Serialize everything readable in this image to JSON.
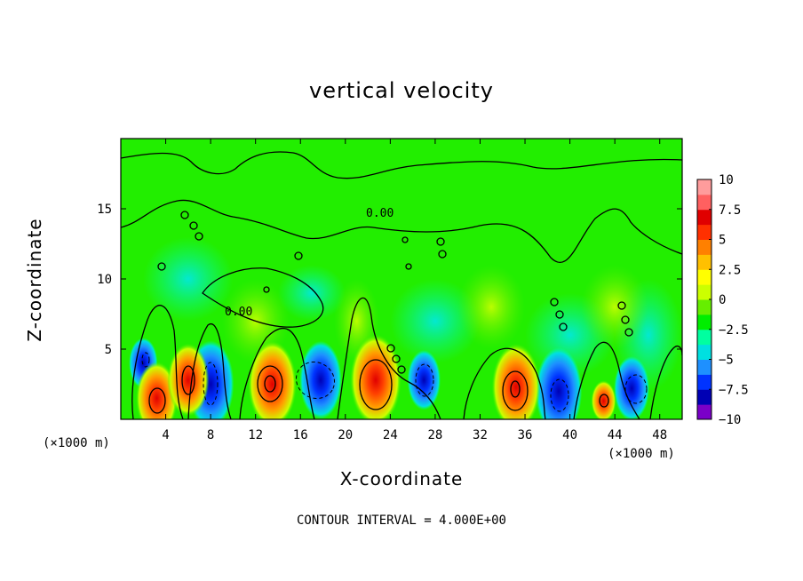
{
  "chart_data": {
    "type": "heatmap",
    "title": "vertical velocity",
    "xlabel": "X-coordinate",
    "ylabel": "Z-coordinate",
    "x_unit_left": "(×1000 m)",
    "x_unit_right": "(×1000 m)",
    "xlim": [
      0,
      50
    ],
    "ylim": [
      0,
      20
    ],
    "x_ticks": [
      4,
      8,
      12,
      16,
      20,
      24,
      28,
      32,
      36,
      40,
      44,
      48
    ],
    "y_ticks": [
      5,
      10,
      15
    ],
    "footnote": "CONTOUR INTERVAL = 4.000E+00",
    "colorbar": {
      "min": -10,
      "max": 10,
      "ticks": [
        10,
        7.5,
        5,
        2.5,
        0,
        -2.5,
        -5,
        -7.5,
        -10
      ],
      "tick_labels": [
        "10",
        "7.5",
        "5",
        "2.5",
        "0",
        "−2.5",
        "−5",
        "−7.5",
        "−10"
      ],
      "colors": [
        "#7a00c8",
        "#0000b4",
        "#0033ff",
        "#1e90ff",
        "#00e0e0",
        "#00ffa0",
        "#00ee00",
        "#66ee00",
        "#ccff00",
        "#ffff00",
        "#ffc000",
        "#ff8000",
        "#ff3000",
        "#e00000",
        "#ff6060",
        "#ff9c9c"
      ]
    },
    "contour_labels": [
      "0.00",
      "0.00"
    ],
    "updrafts": [
      {
        "x": 3.2,
        "z": 1.5,
        "w": 6.5
      },
      {
        "x": 6.0,
        "z": 2.8,
        "w": 6.5
      },
      {
        "x": 13.5,
        "z": 2.5,
        "w": 8.0
      },
      {
        "x": 22.7,
        "z": 2.8,
        "w": 8.5
      },
      {
        "x": 35.2,
        "z": 2.3,
        "w": 8.0
      },
      {
        "x": 43.0,
        "z": 1.3,
        "w": 3.0
      }
    ],
    "downdrafts": [
      {
        "x": 8.0,
        "z": 2.5,
        "w": -8.0
      },
      {
        "x": 17.8,
        "z": 2.8,
        "w": -7.0
      },
      {
        "x": 27.0,
        "z": 2.8,
        "w": -5.0
      },
      {
        "x": 39.0,
        "z": 2.0,
        "w": -8.0
      },
      {
        "x": 45.5,
        "z": 2.2,
        "w": -5.5
      },
      {
        "x": 2.0,
        "z": 4.0,
        "w": -4.0
      }
    ]
  }
}
